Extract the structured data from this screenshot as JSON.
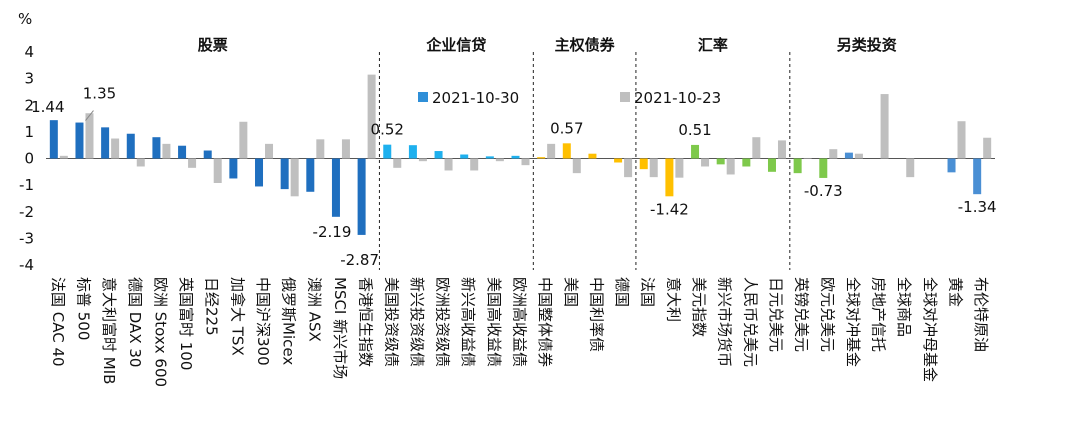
{
  "chart_data": {
    "type": "bar",
    "unit_label": "%",
    "ylim": [
      -4,
      4
    ],
    "yticks": [
      4,
      3,
      2,
      1,
      0,
      -1,
      -2,
      -3,
      -4
    ],
    "legend_position": "top-center",
    "groups": [
      {
        "label": "股票",
        "start": 0,
        "end": 12
      },
      {
        "label": "企业信贷",
        "start": 13,
        "end": 18
      },
      {
        "label": "主权债券",
        "start": 19,
        "end": 22
      },
      {
        "label": "汇率",
        "start": 23,
        "end": 28
      },
      {
        "label": "另类投资",
        "start": 29,
        "end": 34
      }
    ],
    "categories": [
      "法国 CAC 40",
      "标普 500",
      "意大利富时 MIB",
      "德国 DAX 30",
      "欧洲 Stoxx 600",
      "英国富时 100",
      "日经225",
      "加拿大 TSX",
      "中国沪深300",
      "俄罗斯Micex",
      "澳洲 ASX",
      "MSCI 新兴市场",
      "香港恒生指数",
      "美国投资级债",
      "新兴投资级债",
      "欧洲投资级债",
      "新兴高收益债",
      "美国高收益债",
      "欧洲高收益债",
      "中国整体债券",
      "美国",
      "中国利率债",
      "德国",
      "法国",
      "意大利",
      "美元指数",
      "新兴市场货币",
      "人民币兑美元",
      "日元兑美元",
      "英镑兑美元",
      "欧元兑美元",
      "全球对冲基金",
      "房地产信托",
      "全球商品",
      "全球对冲母基金",
      "黄金",
      "布伦特原油"
    ],
    "series": [
      {
        "name": "2021-10-30",
        "color": "#2f8fd8",
        "values": [
          1.44,
          1.35,
          1.17,
          0.93,
          0.8,
          0.48,
          0.3,
          -0.75,
          -1.05,
          -1.15,
          -1.25,
          -2.19,
          -2.87,
          0.52,
          0.5,
          0.28,
          0.15,
          0.08,
          0.1,
          0.05,
          0.57,
          0.18,
          -0.15,
          -0.4,
          -1.42,
          0.51,
          -0.22,
          -0.3,
          -0.5,
          -0.55,
          -0.73,
          0.22,
          0.0,
          0.0,
          0.0,
          -0.52,
          -1.34
        ]
      },
      {
        "name": "2021-10-23",
        "color": "#bfbfbf",
        "values": [
          0.1,
          1.7,
          0.75,
          -0.3,
          0.55,
          -0.35,
          -0.92,
          1.38,
          0.55,
          -1.42,
          0.72,
          0.72,
          3.15,
          -0.35,
          -0.1,
          -0.45,
          -0.45,
          -0.1,
          -0.25,
          0.55,
          -0.55,
          0.0,
          -0.7,
          -0.7,
          -0.72,
          -0.3,
          -0.6,
          0.8,
          0.68,
          0.02,
          0.35,
          0.18,
          2.42,
          -0.7,
          0.0,
          1.4,
          0.78
        ]
      }
    ],
    "primary_colors": [
      "#1f6fbf",
      "#1f6fbf",
      "#1f6fbf",
      "#1f6fbf",
      "#1f6fbf",
      "#1f6fbf",
      "#1f6fbf",
      "#1f6fbf",
      "#1f6fbf",
      "#1f6fbf",
      "#1f6fbf",
      "#1f6fbf",
      "#1f6fbf",
      "#1eb0ee",
      "#1eb0ee",
      "#1eb0ee",
      "#1eb0ee",
      "#1eb0ee",
      "#1eb0ee",
      "#ffc000",
      "#ffc000",
      "#ffc000",
      "#ffc000",
      "#ffc000",
      "#ffc000",
      "#7ec94b",
      "#7ec94b",
      "#7ec94b",
      "#7ec94b",
      "#7ec94b",
      "#7ec94b",
      "#4a8fd4",
      "#4a8fd4",
      "#4a8fd4",
      "#4a8fd4",
      "#4a8fd4",
      "#4a8fd4"
    ],
    "data_labels": [
      {
        "index": 0,
        "text": "1.44"
      },
      {
        "index": 1,
        "text": "1.35"
      },
      {
        "index": 11,
        "text": "-2.19"
      },
      {
        "index": 12,
        "text": "-2.87"
      },
      {
        "index": 13,
        "text": "0.52"
      },
      {
        "index": 20,
        "text": "0.57"
      },
      {
        "index": 24,
        "text": "-1.42"
      },
      {
        "index": 25,
        "text": "0.51"
      },
      {
        "index": 30,
        "text": "-0.73"
      },
      {
        "index": 36,
        "text": "-1.34"
      }
    ]
  }
}
